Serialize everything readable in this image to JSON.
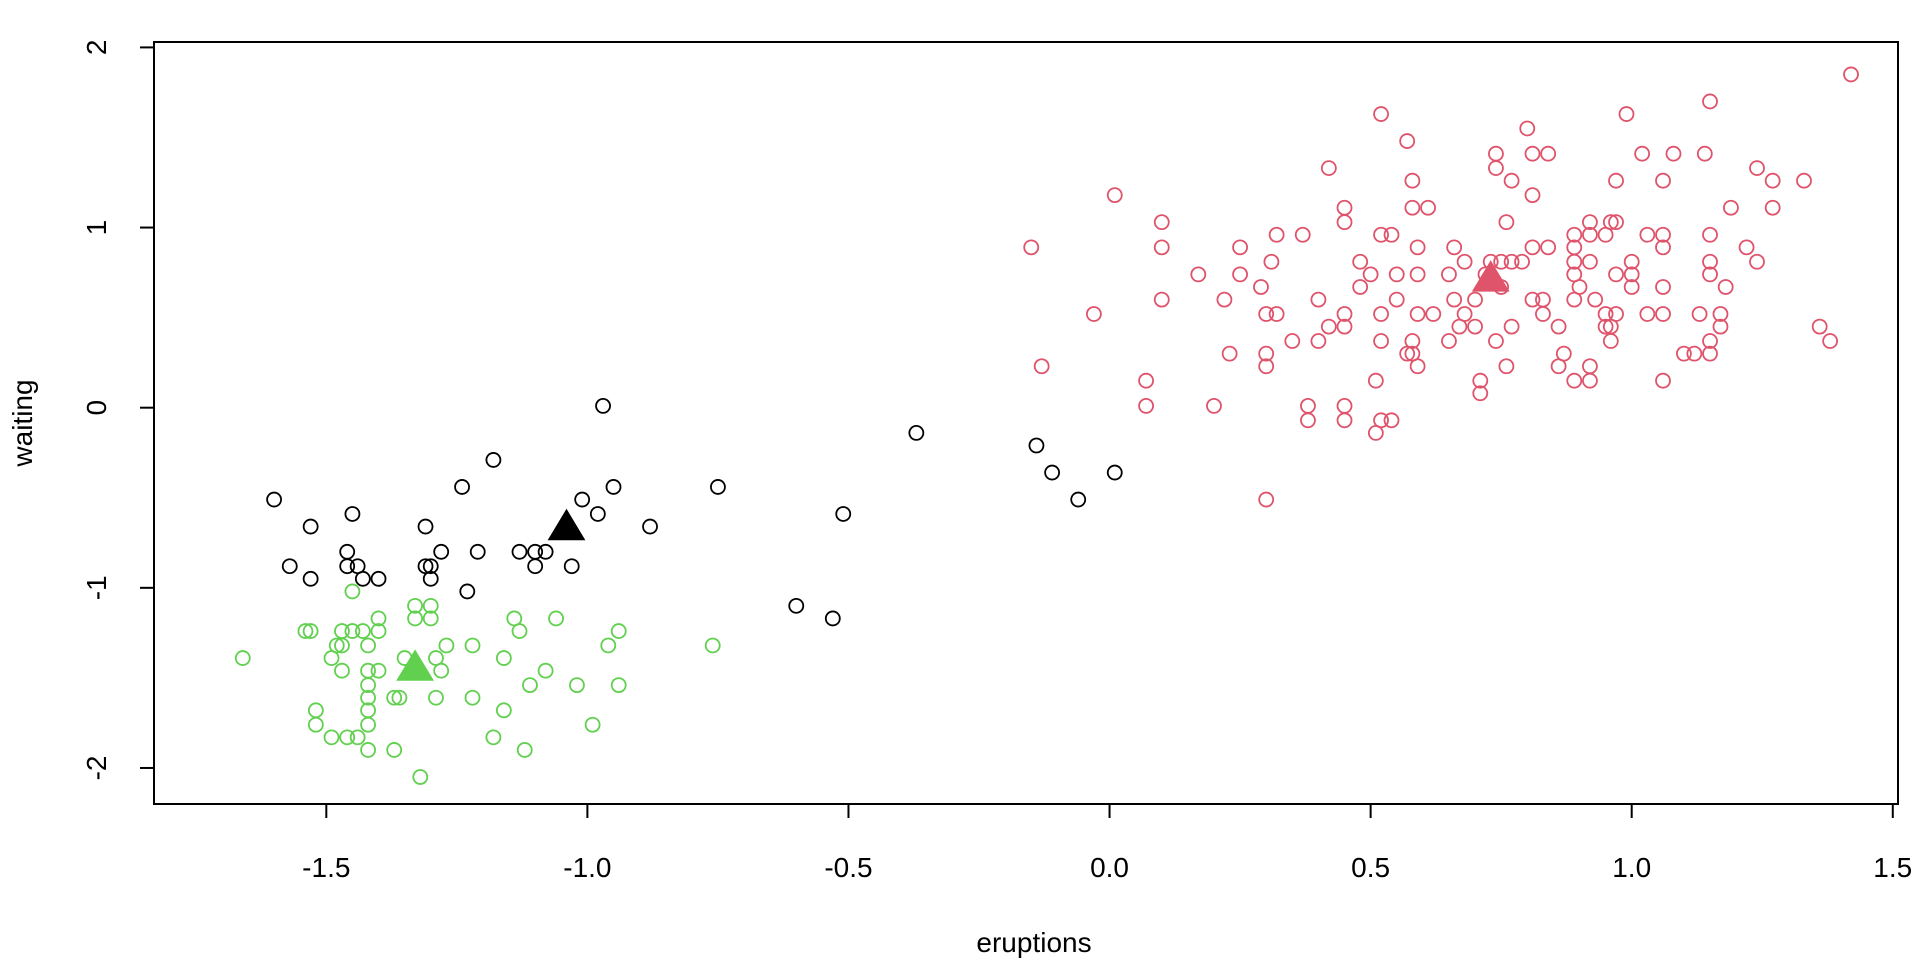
{
  "chart_data": {
    "type": "scatter",
    "title": "",
    "xlabel": "eruptions",
    "ylabel": "waiting",
    "xlim": [
      -1.83,
      1.51
    ],
    "ylim": [
      -2.2,
      2.03
    ],
    "x_ticks": [
      -1.5,
      -1.0,
      -0.5,
      0.0,
      0.5,
      1.0,
      1.5
    ],
    "x_tick_labels": [
      "-1.5",
      "-1.0",
      "-0.5",
      "0.0",
      "0.5",
      "1.0",
      "1.5"
    ],
    "y_ticks": [
      -2,
      -1,
      0,
      1,
      2
    ],
    "y_tick_labels": [
      "-2",
      "-1",
      "0",
      "1",
      "2"
    ],
    "grid": false,
    "legend": "none",
    "series": [
      {
        "color": "#000000",
        "marker": "open-circle",
        "points": [
          [
            -1.6,
            -0.51
          ],
          [
            -1.57,
            -0.88
          ],
          [
            -1.53,
            -0.66
          ],
          [
            -1.53,
            -0.95
          ],
          [
            -1.46,
            -0.8
          ],
          [
            -1.46,
            -0.88
          ],
          [
            -1.45,
            -0.59
          ],
          [
            -1.44,
            -0.88
          ],
          [
            -1.43,
            -0.95
          ],
          [
            -1.4,
            -0.95
          ],
          [
            -1.31,
            -0.66
          ],
          [
            -1.31,
            -0.88
          ],
          [
            -1.3,
            -0.88
          ],
          [
            -1.3,
            -0.95
          ],
          [
            -1.28,
            -0.8
          ],
          [
            -1.24,
            -0.44
          ],
          [
            -1.23,
            -1.02
          ],
          [
            -1.21,
            -0.8
          ],
          [
            -1.18,
            -0.29
          ],
          [
            -1.13,
            -0.8
          ],
          [
            -1.1,
            -0.8
          ],
          [
            -1.1,
            -0.88
          ],
          [
            -1.08,
            -0.8
          ],
          [
            -1.04,
            -0.66
          ],
          [
            -1.03,
            -0.88
          ],
          [
            -1.01,
            -0.51
          ],
          [
            -0.98,
            -0.59
          ],
          [
            -0.97,
            0.01
          ],
          [
            -0.95,
            -0.44
          ],
          [
            -0.88,
            -0.66
          ],
          [
            -0.75,
            -0.44
          ],
          [
            -0.6,
            -1.1
          ],
          [
            -0.53,
            -1.17
          ],
          [
            -0.51,
            -0.59
          ],
          [
            -0.37,
            -0.14
          ],
          [
            -0.14,
            -0.21
          ],
          [
            -0.11,
            -0.36
          ],
          [
            -0.06,
            -0.51
          ],
          [
            0.01,
            -0.36
          ]
        ]
      },
      {
        "color": "#df536b",
        "marker": "open-circle",
        "points": [
          [
            -0.15,
            0.89
          ],
          [
            -0.13,
            0.23
          ],
          [
            -0.03,
            0.52
          ],
          [
            0.01,
            1.18
          ],
          [
            0.07,
            0.15
          ],
          [
            0.07,
            0.01
          ],
          [
            0.1,
            1.03
          ],
          [
            0.1,
            0.89
          ],
          [
            0.1,
            0.6
          ],
          [
            0.17,
            0.74
          ],
          [
            0.2,
            0.01
          ],
          [
            0.22,
            0.6
          ],
          [
            0.23,
            0.3
          ],
          [
            0.25,
            0.89
          ],
          [
            0.25,
            0.74
          ],
          [
            0.29,
            0.67
          ],
          [
            0.3,
            0.52
          ],
          [
            0.3,
            0.3
          ],
          [
            0.3,
            0.23
          ],
          [
            0.3,
            -0.51
          ],
          [
            0.31,
            0.81
          ],
          [
            0.32,
            0.96
          ],
          [
            0.32,
            0.52
          ],
          [
            0.35,
            0.37
          ],
          [
            0.37,
            0.96
          ],
          [
            0.38,
            0.01
          ],
          [
            0.38,
            -0.07
          ],
          [
            0.4,
            0.6
          ],
          [
            0.4,
            0.37
          ],
          [
            0.42,
            1.33
          ],
          [
            0.42,
            0.45
          ],
          [
            0.45,
            1.11
          ],
          [
            0.45,
            1.03
          ],
          [
            0.45,
            0.52
          ],
          [
            0.45,
            0.45
          ],
          [
            0.45,
            0.01
          ],
          [
            0.45,
            -0.07
          ],
          [
            0.48,
            0.81
          ],
          [
            0.48,
            0.67
          ],
          [
            0.5,
            0.74
          ],
          [
            0.51,
            0.15
          ],
          [
            0.51,
            -0.14
          ],
          [
            0.52,
            1.63
          ],
          [
            0.52,
            0.96
          ],
          [
            0.52,
            0.52
          ],
          [
            0.52,
            0.37
          ],
          [
            0.52,
            -0.07
          ],
          [
            0.54,
            0.96
          ],
          [
            0.54,
            -0.07
          ],
          [
            0.55,
            0.74
          ],
          [
            0.55,
            0.6
          ],
          [
            0.57,
            1.48
          ],
          [
            0.57,
            0.3
          ],
          [
            0.58,
            1.26
          ],
          [
            0.58,
            1.11
          ],
          [
            0.58,
            0.37
          ],
          [
            0.58,
            0.3
          ],
          [
            0.59,
            0.89
          ],
          [
            0.59,
            0.74
          ],
          [
            0.59,
            0.52
          ],
          [
            0.59,
            0.23
          ],
          [
            0.61,
            1.11
          ],
          [
            0.62,
            0.52
          ],
          [
            0.65,
            0.74
          ],
          [
            0.65,
            0.37
          ],
          [
            0.66,
            0.89
          ],
          [
            0.66,
            0.6
          ],
          [
            0.67,
            0.45
          ],
          [
            0.68,
            0.81
          ],
          [
            0.68,
            0.52
          ],
          [
            0.7,
            0.6
          ],
          [
            0.7,
            0.45
          ],
          [
            0.71,
            0.15
          ],
          [
            0.71,
            0.08
          ],
          [
            0.72,
            0.74
          ],
          [
            0.73,
            0.81
          ],
          [
            0.74,
            1.41
          ],
          [
            0.74,
            1.33
          ],
          [
            0.74,
            0.37
          ],
          [
            0.75,
            0.81
          ],
          [
            0.75,
            0.67
          ],
          [
            0.76,
            1.03
          ],
          [
            0.76,
            0.23
          ],
          [
            0.77,
            1.26
          ],
          [
            0.77,
            0.81
          ],
          [
            0.77,
            0.45
          ],
          [
            0.79,
            0.81
          ],
          [
            0.8,
            1.55
          ],
          [
            0.81,
            1.41
          ],
          [
            0.81,
            1.18
          ],
          [
            0.81,
            0.89
          ],
          [
            0.81,
            0.6
          ],
          [
            0.83,
            0.6
          ],
          [
            0.83,
            0.52
          ],
          [
            0.84,
            1.41
          ],
          [
            0.84,
            0.89
          ],
          [
            0.86,
            0.45
          ],
          [
            0.86,
            0.23
          ],
          [
            0.87,
            0.3
          ],
          [
            0.89,
            0.96
          ],
          [
            0.89,
            0.89
          ],
          [
            0.89,
            0.81
          ],
          [
            0.89,
            0.74
          ],
          [
            0.89,
            0.6
          ],
          [
            0.89,
            0.15
          ],
          [
            0.9,
            0.67
          ],
          [
            0.92,
            1.03
          ],
          [
            0.92,
            0.96
          ],
          [
            0.92,
            0.81
          ],
          [
            0.92,
            0.23
          ],
          [
            0.92,
            0.15
          ],
          [
            0.93,
            0.6
          ],
          [
            0.95,
            0.96
          ],
          [
            0.95,
            0.52
          ],
          [
            0.95,
            0.45
          ],
          [
            0.96,
            1.03
          ],
          [
            0.96,
            0.45
          ],
          [
            0.96,
            0.37
          ],
          [
            0.97,
            1.26
          ],
          [
            0.97,
            0.52
          ],
          [
            0.97,
            1.03
          ],
          [
            0.97,
            0.74
          ],
          [
            0.99,
            1.63
          ],
          [
            1.0,
            0.81
          ],
          [
            1.0,
            0.74
          ],
          [
            1.0,
            0.67
          ],
          [
            1.02,
            1.41
          ],
          [
            1.03,
            0.96
          ],
          [
            1.03,
            0.52
          ],
          [
            1.06,
            1.26
          ],
          [
            1.06,
            0.96
          ],
          [
            1.06,
            0.89
          ],
          [
            1.06,
            0.67
          ],
          [
            1.06,
            0.52
          ],
          [
            1.06,
            0.15
          ],
          [
            1.08,
            1.41
          ],
          [
            1.1,
            0.3
          ],
          [
            1.12,
            0.3
          ],
          [
            1.13,
            0.52
          ],
          [
            1.14,
            1.41
          ],
          [
            1.15,
            1.7
          ],
          [
            1.15,
            0.96
          ],
          [
            1.15,
            0.81
          ],
          [
            1.15,
            0.74
          ],
          [
            1.15,
            0.37
          ],
          [
            1.15,
            0.3
          ],
          [
            1.17,
            0.52
          ],
          [
            1.17,
            0.45
          ],
          [
            1.18,
            0.67
          ],
          [
            1.19,
            1.11
          ],
          [
            1.22,
            0.89
          ],
          [
            1.24,
            1.33
          ],
          [
            1.24,
            0.81
          ],
          [
            1.27,
            1.26
          ],
          [
            1.27,
            1.11
          ],
          [
            1.33,
            1.26
          ],
          [
            1.36,
            0.45
          ],
          [
            1.38,
            0.37
          ],
          [
            1.42,
            1.85
          ]
        ]
      },
      {
        "color": "#61d04f",
        "marker": "open-circle",
        "points": [
          [
            -1.66,
            -1.39
          ],
          [
            -1.54,
            -1.24
          ],
          [
            -1.53,
            -1.24
          ],
          [
            -1.52,
            -1.68
          ],
          [
            -1.52,
            -1.76
          ],
          [
            -1.49,
            -1.39
          ],
          [
            -1.49,
            -1.83
          ],
          [
            -1.48,
            -1.32
          ],
          [
            -1.47,
            -1.24
          ],
          [
            -1.47,
            -1.32
          ],
          [
            -1.47,
            -1.46
          ],
          [
            -1.46,
            -1.83
          ],
          [
            -1.45,
            -1.02
          ],
          [
            -1.45,
            -1.24
          ],
          [
            -1.44,
            -1.83
          ],
          [
            -1.43,
            -1.24
          ],
          [
            -1.42,
            -1.32
          ],
          [
            -1.42,
            -1.46
          ],
          [
            -1.42,
            -1.54
          ],
          [
            -1.42,
            -1.61
          ],
          [
            -1.42,
            -1.68
          ],
          [
            -1.42,
            -1.76
          ],
          [
            -1.42,
            -1.9
          ],
          [
            -1.4,
            -1.17
          ],
          [
            -1.4,
            -1.24
          ],
          [
            -1.4,
            -1.46
          ],
          [
            -1.37,
            -1.61
          ],
          [
            -1.37,
            -1.9
          ],
          [
            -1.36,
            -1.61
          ],
          [
            -1.35,
            -1.39
          ],
          [
            -1.33,
            -1.1
          ],
          [
            -1.33,
            -1.17
          ],
          [
            -1.32,
            -2.05
          ],
          [
            -1.3,
            -1.1
          ],
          [
            -1.3,
            -1.17
          ],
          [
            -1.29,
            -1.39
          ],
          [
            -1.29,
            -1.61
          ],
          [
            -1.28,
            -1.46
          ],
          [
            -1.27,
            -1.32
          ],
          [
            -1.22,
            -1.32
          ],
          [
            -1.22,
            -1.61
          ],
          [
            -1.18,
            -1.83
          ],
          [
            -1.16,
            -1.39
          ],
          [
            -1.16,
            -1.68
          ],
          [
            -1.14,
            -1.17
          ],
          [
            -1.13,
            -1.24
          ],
          [
            -1.12,
            -1.9
          ],
          [
            -1.11,
            -1.54
          ],
          [
            -1.08,
            -1.46
          ],
          [
            -1.06,
            -1.17
          ],
          [
            -1.02,
            -1.54
          ],
          [
            -0.99,
            -1.76
          ],
          [
            -0.96,
            -1.32
          ],
          [
            -0.94,
            -1.24
          ],
          [
            -0.94,
            -1.54
          ],
          [
            -0.76,
            -1.32
          ]
        ]
      }
    ],
    "centers": [
      {
        "color": "#000000",
        "marker": "filled-triangle",
        "x": -1.04,
        "y": -0.67
      },
      {
        "color": "#df536b",
        "marker": "filled-triangle",
        "x": 0.73,
        "y": 0.71
      },
      {
        "color": "#61d04f",
        "marker": "filled-triangle",
        "x": -1.33,
        "y": -1.45
      }
    ]
  }
}
